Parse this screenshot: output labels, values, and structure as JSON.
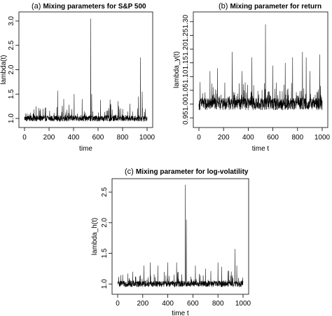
{
  "chart_data": [
    {
      "type": "line",
      "panel_letter": "(a)",
      "title": "Mixing parameters for S&P 500",
      "xlabel": "time",
      "ylabel": "lambda(t)",
      "xlim": [
        0,
        1000
      ],
      "ylim": [
        0.9,
        3.1
      ],
      "xticks": [
        0,
        200,
        400,
        600,
        800,
        1000
      ],
      "yticks": [
        1.0,
        1.5,
        2.0,
        2.5,
        3.0
      ],
      "ytick_labels": [
        "1.0",
        "1.5",
        "2.0",
        "2.5",
        "3.0"
      ],
      "grid": false,
      "series": [
        {
          "baseline": 1.0,
          "noise": 0.06,
          "spike_count": 130,
          "spike_scale": 0.45,
          "peaks": [
            [
              20,
              1.1
            ],
            [
              95,
              1.25
            ],
            [
              150,
              1.2
            ],
            [
              270,
              1.57
            ],
            [
              320,
              1.4
            ],
            [
              405,
              1.5
            ],
            [
              470,
              1.4
            ],
            [
              540,
              3.05
            ],
            [
              548,
              1.5
            ],
            [
              620,
              1.38
            ],
            [
              700,
              1.3
            ],
            [
              770,
              1.25
            ],
            [
              860,
              1.3
            ],
            [
              930,
              1.45
            ],
            [
              945,
              2.25
            ],
            [
              960,
              1.55
            ],
            [
              985,
              1.2
            ]
          ]
        }
      ]
    },
    {
      "type": "line",
      "panel_letter": "(b)",
      "title": "Mixing parameter for return",
      "xlabel": "time  t",
      "ylabel": "lambda_y(t)",
      "xlim": [
        0,
        1000
      ],
      "ylim": [
        0.93,
        1.32
      ],
      "xticks": [
        0,
        200,
        400,
        600,
        800,
        1000
      ],
      "yticks": [
        0.95,
        1.0,
        1.05,
        1.1,
        1.15,
        1.2,
        1.25,
        1.3
      ],
      "ytick_labels": [
        "0.95",
        "1.00",
        "1.05",
        "1.10",
        "1.15",
        "1.20",
        "1.25",
        "1.30"
      ],
      "grid": false,
      "series": [
        {
          "baseline": 1.0,
          "noise": 0.022,
          "spike_count": 220,
          "spike_scale": 0.09,
          "floor": 0.955,
          "peaks": [
            [
              10,
              1.08
            ],
            [
              90,
              1.12
            ],
            [
              150,
              1.13
            ],
            [
              270,
              1.19
            ],
            [
              350,
              1.12
            ],
            [
              430,
              1.17
            ],
            [
              540,
              1.29
            ],
            [
              600,
              1.14
            ],
            [
              700,
              1.15
            ],
            [
              760,
              1.17
            ],
            [
              840,
              1.19
            ],
            [
              870,
              1.17
            ],
            [
              900,
              1.12
            ],
            [
              980,
              1.18
            ]
          ]
        }
      ]
    },
    {
      "type": "line",
      "panel_letter": "(c)",
      "title": "Mixing parameter for log-volatility",
      "xlabel": "time t",
      "ylabel": "lambda_h(t)",
      "xlim": [
        0,
        1000
      ],
      "ylim": [
        0.9,
        2.65
      ],
      "xticks": [
        0,
        200,
        400,
        600,
        800,
        1000
      ],
      "yticks": [
        1.0,
        1.5,
        2.0,
        2.5
      ],
      "ytick_labels": [
        "1.0",
        "1.5",
        "2.0",
        "2.5"
      ],
      "grid": false,
      "series": [
        {
          "baseline": 1.0,
          "noise": 0.05,
          "spike_count": 140,
          "spike_scale": 0.25,
          "peaks": [
            [
              40,
              1.15
            ],
            [
              120,
              1.2
            ],
            [
              210,
              1.3
            ],
            [
              260,
              1.35
            ],
            [
              320,
              1.3
            ],
            [
              400,
              1.35
            ],
            [
              470,
              1.35
            ],
            [
              540,
              2.62
            ],
            [
              548,
              2.05
            ],
            [
              620,
              1.3
            ],
            [
              700,
              1.25
            ],
            [
              800,
              1.35
            ],
            [
              830,
              1.28
            ],
            [
              935,
              1.57
            ],
            [
              950,
              1.3
            ]
          ]
        }
      ]
    }
  ]
}
